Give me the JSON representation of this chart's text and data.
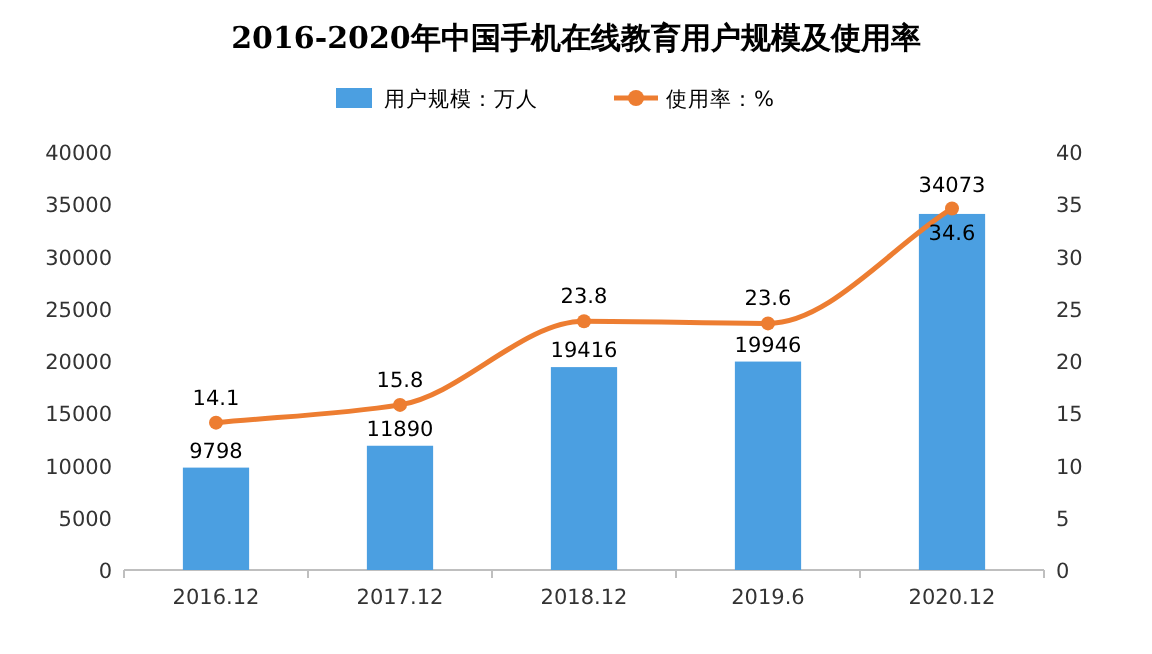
{
  "chart_data": {
    "type": "bar",
    "title": "2016-2020年中国手机在线教育用户规模及使用率",
    "categories": [
      "2016.12",
      "2017.12",
      "2018.12",
      "2019.6",
      "2020.12"
    ],
    "series": [
      {
        "name": "用户规模：万人",
        "color": "#4b9fe1",
        "values": [
          9798,
          11890,
          19416,
          19946,
          34073
        ]
      },
      {
        "name": "使用率：%",
        "type": "line",
        "axis": "y2",
        "color": "#ed7d31",
        "marker": "circle",
        "values": [
          14.1,
          15.8,
          23.8,
          23.6,
          34.6
        ]
      }
    ],
    "ylim": [
      0,
      40000
    ],
    "yticks": [
      0,
      5000,
      10000,
      15000,
      20000,
      25000,
      30000,
      35000,
      40000
    ],
    "y2lim": [
      0,
      40
    ],
    "y2ticks": [
      0,
      5,
      10,
      15,
      20,
      25,
      30,
      35,
      40
    ],
    "data_labels": true,
    "legend": "top"
  }
}
